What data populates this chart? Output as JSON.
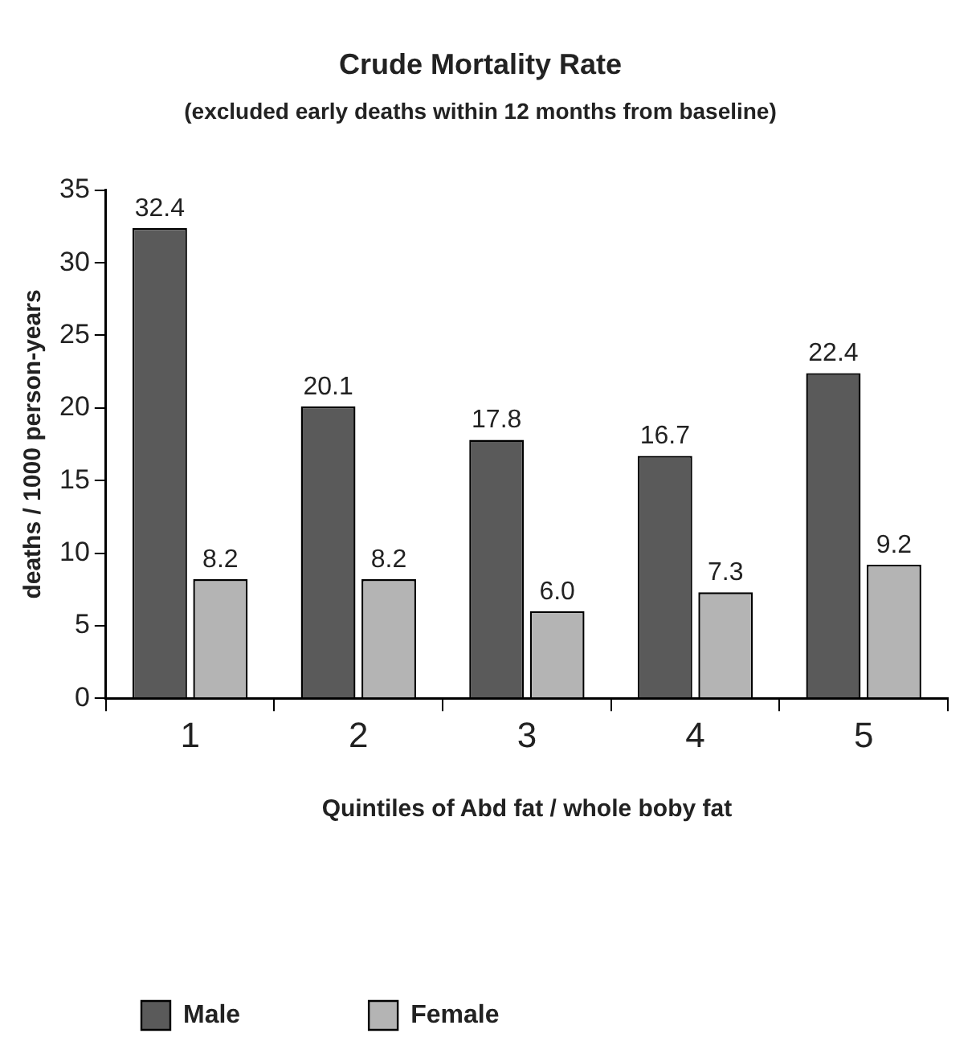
{
  "chart_data": {
    "type": "bar",
    "title": "Crude Mortality Rate",
    "subtitle": "(excluded early deaths within 12 months from baseline)",
    "xlabel": "Quintiles of Abd fat / whole boby fat",
    "ylabel": "deaths / 1000 person-years",
    "categories": [
      "1",
      "2",
      "3",
      "4",
      "5"
    ],
    "series": [
      {
        "name": "Male",
        "color": "#5a5a5a",
        "values": [
          32.4,
          20.1,
          17.8,
          16.7,
          22.4
        ],
        "value_labels": [
          "32.4",
          "20.1",
          "17.8",
          "16.7",
          "22.4"
        ]
      },
      {
        "name": "Female",
        "color": "#b4b4b4",
        "values": [
          8.2,
          8.2,
          6.0,
          7.3,
          9.2
        ],
        "value_labels": [
          "8.2",
          "8.2",
          "6.0",
          "7.3",
          "9.2"
        ]
      }
    ],
    "ylim": [
      0,
      35
    ],
    "yticks": [
      0,
      5,
      10,
      15,
      20,
      25,
      30,
      35
    ],
    "legend": "bottom left"
  }
}
